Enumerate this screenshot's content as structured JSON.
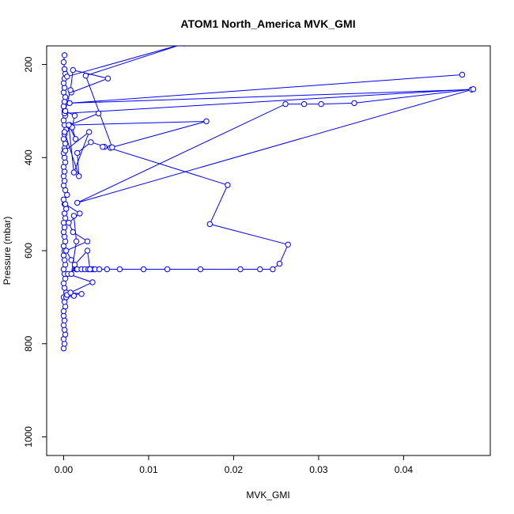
{
  "chart_data": {
    "type": "scatter",
    "title": "ATOM1 North_America MVK_GMI",
    "xlabel": "MVK_GMI",
    "ylabel": "Pressure (mbar)",
    "xlim": [
      -0.002,
      0.0502
    ],
    "ylim": [
      1040,
      160
    ],
    "y_reversed": true,
    "grid": false,
    "x_ticks": [
      0.0,
      0.01,
      0.02,
      0.03,
      0.04
    ],
    "x_tick_labels": [
      "0.00",
      "0.01",
      "0.02",
      "0.03",
      "0.04"
    ],
    "y_ticks": [
      200,
      400,
      600,
      800,
      1000
    ],
    "y_tick_labels": [
      "200",
      "400",
      "600",
      "800",
      "1000"
    ],
    "series_color": "#0000ff",
    "marker": "open-circle",
    "series": [
      {
        "x": [
          0.0,
          0.0001,
          0.0,
          0.0002,
          0.0001,
          0.0,
          0.0001,
          0.0,
          0.0,
          0.0002,
          0.0001,
          0.0,
          0.0003,
          0.0001,
          0.0,
          0.0002,
          0.0001,
          0.0,
          0.0002,
          0.0001,
          0.0,
          0.0001,
          0.0,
          0.0002,
          0.0001,
          0.0,
          0.0001,
          0.0,
          0.0002,
          0.0001,
          0.0003,
          0.0001,
          0.0,
          0.0004,
          0.0002,
          0.0,
          0.0001
        ],
        "y": [
          810,
          800,
          790,
          780,
          770,
          760,
          750,
          740,
          730,
          720,
          710,
          700,
          690,
          680,
          670,
          660,
          650,
          640,
          630,
          620,
          610,
          600,
          590,
          580,
          570,
          560,
          550,
          540,
          530,
          520,
          510,
          500,
          490,
          480,
          470,
          460,
          450
        ]
      },
      {
        "x": [
          0.0,
          0.0001,
          0.0,
          0.0002,
          0.0001,
          0.0,
          0.0001,
          0.0002,
          0.0,
          0.0001,
          0.0003,
          0.0001,
          0.0,
          0.0002,
          0.0001,
          0.0,
          0.0001,
          0.0002,
          0.0,
          0.0001,
          0.0,
          0.0001,
          0.0002,
          0.0001,
          0.0,
          0.0001
        ],
        "y": [
          440,
          430,
          420,
          410,
          400,
          390,
          380,
          370,
          360,
          350,
          340,
          330,
          320,
          310,
          300,
          290,
          280,
          270,
          260,
          250,
          240,
          230,
          220,
          210,
          195,
          180
        ]
      },
      {
        "x": [
          0.0003,
          0.0012,
          0.0004,
          0.0021,
          0.0008,
          0.0034,
          0.0005,
          0.0015,
          0.0009,
          0.0003,
          0.0028,
          0.0011,
          0.0006,
          0.0019,
          0.0002
        ],
        "y": [
          700,
          697,
          695,
          693,
          690,
          668,
          650,
          640,
          620,
          600,
          580,
          560,
          540,
          520,
          500
        ]
      },
      {
        "x": [
          0.0033,
          0.0035,
          0.0037,
          0.0042,
          0.0051,
          0.0066,
          0.0094,
          0.0122,
          0.0161,
          0.0208,
          0.0231,
          0.0246,
          0.0254,
          0.0264,
          0.0172,
          0.0193,
          0.0032,
          0.0016,
          0.0018,
          0.0001
        ],
        "y": [
          640,
          640,
          640,
          640,
          640,
          640,
          640,
          640,
          640,
          640,
          640,
          640,
          628,
          587,
          543,
          459,
          367,
          390,
          440,
          345
        ]
      },
      {
        "x": [
          0.0016,
          0.0021,
          0.0025,
          0.0029,
          0.0031,
          0.0028,
          0.0013,
          0.0009,
          0.0015,
          0.0012
        ],
        "y": [
          640,
          640,
          640,
          640,
          640,
          600,
          630,
          650,
          580,
          525
        ]
      },
      {
        "x": [
          0.0469,
          0.0007,
          0.048,
          0.0016,
          0.0261,
          0.0283,
          0.0303,
          0.0342,
          0.0482,
          0.0001
        ],
        "y": [
          222,
          283,
          254,
          497,
          285,
          285,
          285,
          283,
          253,
          305
        ]
      },
      {
        "x": [
          0.0041,
          0.0007,
          0.0168,
          0.0055,
          0.0048,
          0.0046,
          0.0057,
          0.0026,
          0.0142,
          0.0004
        ],
        "y": [
          305,
          330,
          322,
          379,
          377,
          377,
          378,
          224,
          155,
          226
        ]
      },
      {
        "x": [
          0.0009,
          0.0052,
          0.0011,
          0.0008,
          0.0002,
          0.0013,
          0.001,
          0.0014,
          0.0006,
          0.0012,
          0.003,
          0.0002
        ],
        "y": [
          260,
          230,
          212,
          255,
          300,
          310,
          335,
          360,
          330,
          432,
          345,
          385
        ]
      }
    ]
  }
}
